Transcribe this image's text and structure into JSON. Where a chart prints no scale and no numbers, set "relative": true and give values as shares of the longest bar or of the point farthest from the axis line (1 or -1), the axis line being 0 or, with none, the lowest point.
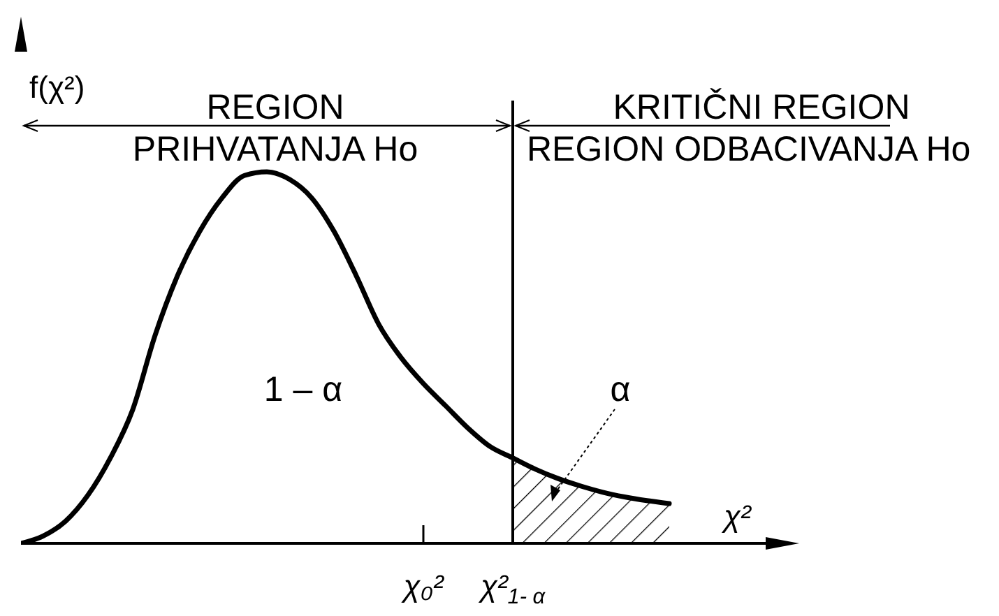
{
  "chart_data": {
    "type": "line",
    "relative": true,
    "ylabel": "f(χ²)",
    "xlabel": "χ²",
    "categories": [
      null,
      null,
      null,
      null,
      null,
      null,
      null,
      null,
      null,
      null,
      null,
      null,
      null,
      null,
      null,
      null,
      null,
      null,
      "χ₀²",
      null,
      null,
      null,
      "χ²$_{1- α}$",
      null,
      null,
      null,
      null,
      null,
      null,
      null,
      null,
      null,
      null,
      null,
      null
    ],
    "series": [
      {
        "color": "#000000",
        "values": [
          0,
          0.02,
          0.06,
          0.13,
          0.23,
          0.36,
          0.56,
          0.72,
          0.84,
          0.93,
          0.99,
          1,
          0.98,
          0.93,
          0.84,
          0.72,
          0.59,
          0.5,
          0.43,
          0.37,
          0.31,
          0.26,
          0.23,
          0.2,
          0.175,
          0.155,
          0.138,
          0.125,
          0.115,
          0.107,
          null,
          null,
          null,
          null,
          null
        ]
      },
      {
        "type": "area",
        "color": "#000000",
        "values": [
          null,
          null,
          null,
          null,
          null,
          null,
          null,
          null,
          null,
          null,
          null,
          null,
          null,
          null,
          null,
          null,
          null,
          null,
          null,
          null,
          null,
          null,
          0.23,
          0.2,
          0.175,
          0.155,
          0.138,
          0.125,
          0.115,
          0.107,
          null,
          null,
          null,
          null,
          null
        ]
      }
    ],
    "ref_lines": [
      {
        "axis": "x",
        "value": "χ²$_{1- α}$",
        "color": "#000000"
      }
    ],
    "annotations": [
      "REGION",
      "PRIHVATANJA Ho",
      "KRITIČNI REGION",
      "REGION ODBACIVANJA Ho",
      "1 – α",
      "α"
    ]
  }
}
